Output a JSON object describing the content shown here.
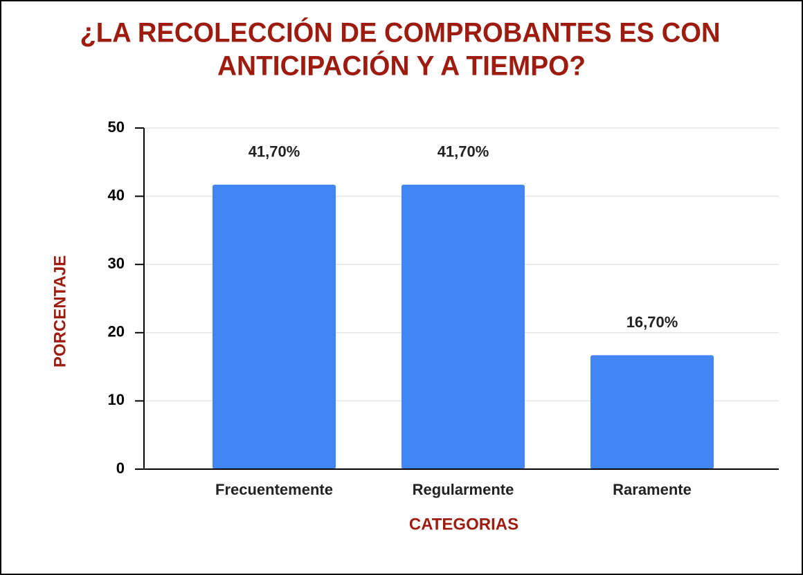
{
  "chart_data": {
    "type": "bar",
    "title": [
      "¿LA RECOLECCIÓN DE COMPROBANTES ES CON",
      "ANTICIPACIÓN Y A TIEMPO?"
    ],
    "x_label": "CATEGORIAS",
    "y_label": "PORCENTAJE",
    "categories": [
      "Frecuentemente",
      "Regularmente",
      "Raramente"
    ],
    "values": [
      41.7,
      41.7,
      16.7
    ],
    "value_labels": [
      "41,70%",
      "41,70%",
      "16,70%"
    ],
    "color": "#4285f4",
    "ylim": [
      0,
      50
    ],
    "yticks": [
      0,
      10,
      20,
      30,
      40,
      50
    ],
    "grid": true
  }
}
